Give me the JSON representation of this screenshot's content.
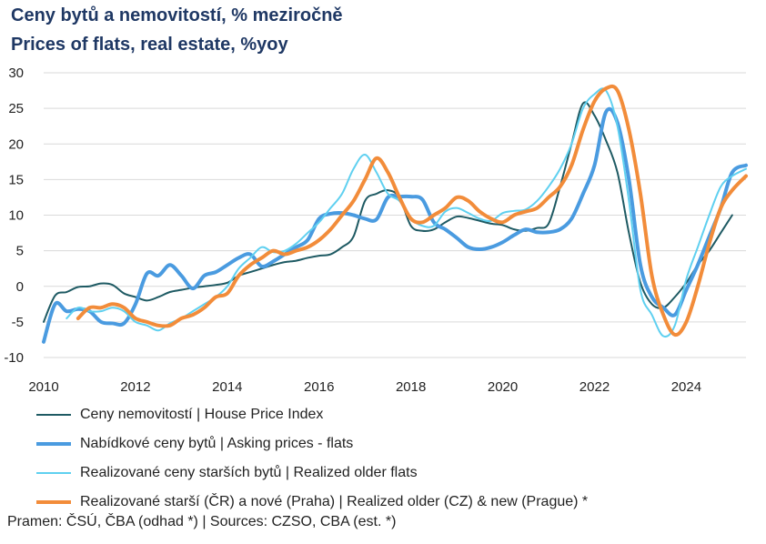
{
  "header": {
    "title": "Ceny bytů a nemovitostí, % meziročně",
    "subtitle": "Prices of flats, real estate, %yoy"
  },
  "source": "Pramen: ČSÚ, ČBA (odhad *) |  Sources: CZSO, CBA (est. *)",
  "chart_data": {
    "type": "line",
    "title": "Ceny bytů a nemovitostí, % meziročně / Prices of flats, real estate, %yoy",
    "xlabel": "",
    "ylabel": "",
    "xlim": [
      2010,
      2025.3
    ],
    "ylim": [
      -10,
      30
    ],
    "x_ticks": [
      2010,
      2012,
      2014,
      2016,
      2018,
      2020,
      2022,
      2024
    ],
    "y_ticks": [
      30,
      25,
      20,
      15,
      10,
      5,
      0,
      -5,
      -10
    ],
    "grid": "horizontal",
    "legend_position": "bottom",
    "series": [
      {
        "name": "Ceny nemovitostí | House Price Index",
        "color": "#1e5a63",
        "width": 2,
        "points": [
          [
            2010.0,
            -5.0
          ],
          [
            2010.25,
            -1.3
          ],
          [
            2010.5,
            -0.8
          ],
          [
            2010.75,
            -0.1
          ],
          [
            2011.0,
            0.0
          ],
          [
            2011.25,
            0.4
          ],
          [
            2011.5,
            0.2
          ],
          [
            2011.75,
            -1.0
          ],
          [
            2012.0,
            -1.5
          ],
          [
            2012.25,
            -2.0
          ],
          [
            2012.5,
            -1.5
          ],
          [
            2012.75,
            -0.8
          ],
          [
            2013.0,
            -0.5
          ],
          [
            2013.25,
            -0.2
          ],
          [
            2013.5,
            0.0
          ],
          [
            2013.75,
            0.2
          ],
          [
            2014.0,
            0.5
          ],
          [
            2014.25,
            1.5
          ],
          [
            2014.5,
            2.0
          ],
          [
            2014.75,
            2.5
          ],
          [
            2015.0,
            3.0
          ],
          [
            2015.25,
            3.4
          ],
          [
            2015.5,
            3.6
          ],
          [
            2015.75,
            4.0
          ],
          [
            2016.0,
            4.3
          ],
          [
            2016.25,
            4.5
          ],
          [
            2016.5,
            5.5
          ],
          [
            2016.75,
            7.0
          ],
          [
            2017.0,
            12.0
          ],
          [
            2017.25,
            13.0
          ],
          [
            2017.5,
            13.5
          ],
          [
            2017.75,
            12.5
          ],
          [
            2018.0,
            8.5
          ],
          [
            2018.25,
            7.8
          ],
          [
            2018.5,
            8.0
          ],
          [
            2018.75,
            9.0
          ],
          [
            2019.0,
            9.8
          ],
          [
            2019.25,
            9.6
          ],
          [
            2019.5,
            9.2
          ],
          [
            2019.75,
            8.8
          ],
          [
            2020.0,
            8.6
          ],
          [
            2020.25,
            8.0
          ],
          [
            2020.5,
            7.8
          ],
          [
            2020.75,
            8.2
          ],
          [
            2021.0,
            8.8
          ],
          [
            2021.25,
            14.0
          ],
          [
            2021.5,
            20.0
          ],
          [
            2021.75,
            25.7
          ],
          [
            2022.0,
            24.0
          ],
          [
            2022.25,
            20.5
          ],
          [
            2022.5,
            16.0
          ],
          [
            2022.75,
            7.5
          ],
          [
            2023.0,
            0.5
          ],
          [
            2023.25,
            -2.5
          ],
          [
            2023.5,
            -3.0
          ],
          [
            2023.75,
            -1.5
          ],
          [
            2024.0,
            0.5
          ],
          [
            2024.25,
            3.0
          ],
          [
            2024.5,
            5.0
          ],
          [
            2024.75,
            7.5
          ],
          [
            2025.0,
            10.0
          ]
        ]
      },
      {
        "name": "Nabídkové ceny bytů | Asking prices - flats",
        "color": "#4a9be0",
        "width": 4,
        "points": [
          [
            2010.0,
            -7.8
          ],
          [
            2010.25,
            -2.5
          ],
          [
            2010.5,
            -3.5
          ],
          [
            2010.75,
            -3.2
          ],
          [
            2011.0,
            -3.5
          ],
          [
            2011.25,
            -5.0
          ],
          [
            2011.5,
            -5.2
          ],
          [
            2011.75,
            -5.2
          ],
          [
            2012.0,
            -2.5
          ],
          [
            2012.25,
            1.8
          ],
          [
            2012.5,
            1.5
          ],
          [
            2012.75,
            3.0
          ],
          [
            2013.0,
            1.5
          ],
          [
            2013.25,
            -0.3
          ],
          [
            2013.5,
            1.5
          ],
          [
            2013.75,
            2.0
          ],
          [
            2014.0,
            3.0
          ],
          [
            2014.25,
            4.0
          ],
          [
            2014.5,
            4.5
          ],
          [
            2014.75,
            2.8
          ],
          [
            2015.0,
            3.5
          ],
          [
            2015.25,
            4.5
          ],
          [
            2015.5,
            5.5
          ],
          [
            2015.75,
            6.5
          ],
          [
            2016.0,
            9.5
          ],
          [
            2016.25,
            10.2
          ],
          [
            2016.5,
            10.3
          ],
          [
            2016.75,
            10.0
          ],
          [
            2017.0,
            9.5
          ],
          [
            2017.25,
            9.4
          ],
          [
            2017.5,
            12.5
          ],
          [
            2017.75,
            12.6
          ],
          [
            2018.0,
            12.6
          ],
          [
            2018.25,
            12.2
          ],
          [
            2018.5,
            9.0
          ],
          [
            2018.75,
            8.0
          ],
          [
            2019.0,
            6.8
          ],
          [
            2019.25,
            5.5
          ],
          [
            2019.5,
            5.2
          ],
          [
            2019.75,
            5.5
          ],
          [
            2020.0,
            6.2
          ],
          [
            2020.25,
            7.2
          ],
          [
            2020.5,
            8.0
          ],
          [
            2020.75,
            7.6
          ],
          [
            2021.0,
            7.6
          ],
          [
            2021.25,
            8.0
          ],
          [
            2021.5,
            9.5
          ],
          [
            2021.75,
            13.0
          ],
          [
            2022.0,
            17.0
          ],
          [
            2022.25,
            24.5
          ],
          [
            2022.5,
            23.0
          ],
          [
            2022.75,
            15.0
          ],
          [
            2023.0,
            3.0
          ],
          [
            2023.25,
            -1.5
          ],
          [
            2023.5,
            -3.0
          ],
          [
            2023.75,
            -4.0
          ],
          [
            2024.0,
            -0.5
          ],
          [
            2024.25,
            3.0
          ],
          [
            2024.5,
            7.0
          ],
          [
            2024.75,
            11.0
          ],
          [
            2025.0,
            16.0
          ],
          [
            2025.3,
            17.0
          ]
        ]
      },
      {
        "name": "Realizované ceny starších bytů | Realized older flats",
        "color": "#5fd0f0",
        "width": 2,
        "points": [
          [
            2010.5,
            -4.5
          ],
          [
            2010.75,
            -3.0
          ],
          [
            2011.0,
            -3.5
          ],
          [
            2011.25,
            -3.5
          ],
          [
            2011.5,
            -3.0
          ],
          [
            2011.75,
            -3.5
          ],
          [
            2012.0,
            -5.0
          ],
          [
            2012.25,
            -5.5
          ],
          [
            2012.5,
            -6.2
          ],
          [
            2012.75,
            -5.2
          ],
          [
            2013.0,
            -4.5
          ],
          [
            2013.25,
            -3.5
          ],
          [
            2013.5,
            -2.5
          ],
          [
            2013.75,
            -1.5
          ],
          [
            2014.0,
            0.0
          ],
          [
            2014.25,
            2.5
          ],
          [
            2014.5,
            4.0
          ],
          [
            2014.75,
            5.5
          ],
          [
            2015.0,
            4.8
          ],
          [
            2015.25,
            5.0
          ],
          [
            2015.5,
            6.0
          ],
          [
            2015.75,
            7.5
          ],
          [
            2016.0,
            9.0
          ],
          [
            2016.25,
            11.0
          ],
          [
            2016.5,
            13.0
          ],
          [
            2016.75,
            16.5
          ],
          [
            2017.0,
            18.5
          ],
          [
            2017.25,
            16.0
          ],
          [
            2017.5,
            13.0
          ],
          [
            2017.75,
            12.0
          ],
          [
            2018.0,
            9.5
          ],
          [
            2018.25,
            8.5
          ],
          [
            2018.5,
            8.5
          ],
          [
            2018.75,
            10.5
          ],
          [
            2019.0,
            11.0
          ],
          [
            2019.25,
            10.3
          ],
          [
            2019.5,
            9.5
          ],
          [
            2019.75,
            9.2
          ],
          [
            2020.0,
            10.3
          ],
          [
            2020.25,
            10.6
          ],
          [
            2020.5,
            10.8
          ],
          [
            2020.75,
            12.0
          ],
          [
            2021.0,
            14.0
          ],
          [
            2021.25,
            16.5
          ],
          [
            2021.5,
            20.0
          ],
          [
            2021.75,
            25.0
          ],
          [
            2022.0,
            27.0
          ],
          [
            2022.25,
            27.5
          ],
          [
            2022.5,
            22.5
          ],
          [
            2022.75,
            12.0
          ],
          [
            2023.0,
            -0.5
          ],
          [
            2023.25,
            -4.0
          ],
          [
            2023.5,
            -7.0
          ],
          [
            2023.75,
            -5.5
          ],
          [
            2024.0,
            1.0
          ],
          [
            2024.25,
            5.5
          ],
          [
            2024.5,
            10.0
          ],
          [
            2024.75,
            14.0
          ],
          [
            2025.0,
            15.5
          ],
          [
            2025.3,
            16.5
          ]
        ]
      },
      {
        "name": "Realizované starší (ČR) a nové (Praha) | Realized older (CZ) & new (Prague) *",
        "color": "#f28c3a",
        "width": 4,
        "points": [
          [
            2010.75,
            -4.5
          ],
          [
            2011.0,
            -3.0
          ],
          [
            2011.25,
            -3.0
          ],
          [
            2011.5,
            -2.5
          ],
          [
            2011.75,
            -3.0
          ],
          [
            2012.0,
            -4.5
          ],
          [
            2012.25,
            -5.0
          ],
          [
            2012.5,
            -5.5
          ],
          [
            2012.75,
            -5.5
          ],
          [
            2013.0,
            -4.5
          ],
          [
            2013.25,
            -4.0
          ],
          [
            2013.5,
            -3.0
          ],
          [
            2013.75,
            -1.5
          ],
          [
            2014.0,
            -1.0
          ],
          [
            2014.25,
            1.5
          ],
          [
            2014.5,
            3.0
          ],
          [
            2014.75,
            4.0
          ],
          [
            2015.0,
            5.0
          ],
          [
            2015.25,
            4.5
          ],
          [
            2015.5,
            5.0
          ],
          [
            2015.75,
            5.5
          ],
          [
            2016.0,
            6.5
          ],
          [
            2016.25,
            8.0
          ],
          [
            2016.5,
            10.0
          ],
          [
            2016.75,
            12.0
          ],
          [
            2017.0,
            15.0
          ],
          [
            2017.25,
            18.0
          ],
          [
            2017.5,
            16.0
          ],
          [
            2017.75,
            12.5
          ],
          [
            2018.0,
            9.5
          ],
          [
            2018.25,
            9.0
          ],
          [
            2018.5,
            10.0
          ],
          [
            2018.75,
            11.0
          ],
          [
            2019.0,
            12.5
          ],
          [
            2019.25,
            12.0
          ],
          [
            2019.5,
            10.5
          ],
          [
            2019.75,
            9.5
          ],
          [
            2020.0,
            9.0
          ],
          [
            2020.25,
            10.0
          ],
          [
            2020.5,
            10.5
          ],
          [
            2020.75,
            11.0
          ],
          [
            2021.0,
            12.5
          ],
          [
            2021.25,
            14.0
          ],
          [
            2021.5,
            17.0
          ],
          [
            2021.75,
            22.0
          ],
          [
            2022.0,
            26.0
          ],
          [
            2022.25,
            27.8
          ],
          [
            2022.5,
            27.5
          ],
          [
            2022.75,
            22.0
          ],
          [
            2023.0,
            13.0
          ],
          [
            2023.25,
            1.5
          ],
          [
            2023.5,
            -4.0
          ],
          [
            2023.75,
            -6.8
          ],
          [
            2024.0,
            -5.0
          ],
          [
            2024.25,
            0.0
          ],
          [
            2024.5,
            6.0
          ],
          [
            2024.75,
            11.0
          ],
          [
            2025.0,
            13.5
          ],
          [
            2025.3,
            15.5
          ]
        ]
      }
    ]
  }
}
